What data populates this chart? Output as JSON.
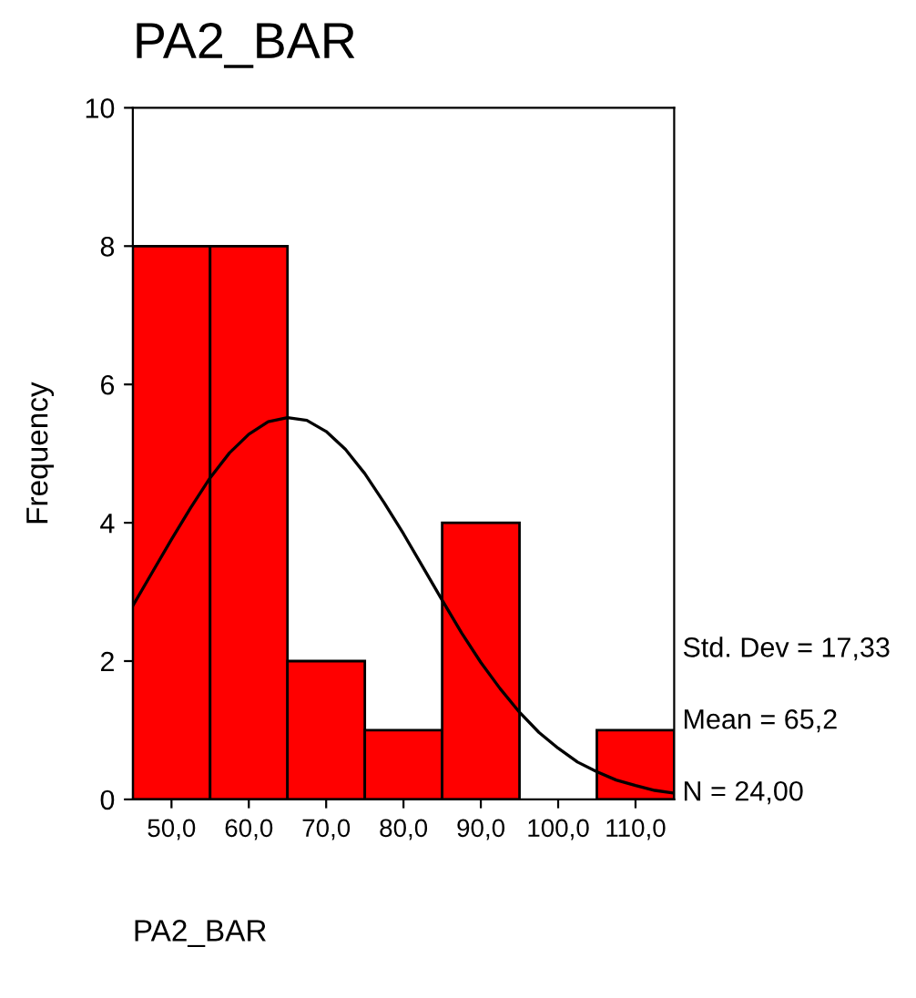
{
  "chart_data": {
    "type": "histogram",
    "title": "PA2_BAR",
    "xlabel": "PA2_BAR",
    "ylabel": "Frequency",
    "bins": [
      45,
      55,
      65,
      75,
      85,
      95,
      105,
      115
    ],
    "values": [
      8,
      8,
      2,
      1,
      4,
      0,
      1
    ],
    "color": "#ff0000",
    "series": [
      {
        "type": "line",
        "color": "#000000",
        "x": [
          45,
          47.5,
          50,
          52.5,
          55,
          57.5,
          60,
          62.5,
          65,
          67.5,
          70,
          72.5,
          75,
          77.5,
          80,
          82.5,
          85,
          87.5,
          90,
          92.5,
          95,
          97.5,
          100,
          102.5,
          105,
          107.5,
          110,
          112.5,
          115
        ],
        "values": [
          2.8,
          3.28,
          3.76,
          4.22,
          4.65,
          5.01,
          5.28,
          5.46,
          5.52,
          5.48,
          5.32,
          5.06,
          4.71,
          4.29,
          3.84,
          3.36,
          2.88,
          2.41,
          1.98,
          1.6,
          1.26,
          0.97,
          0.74,
          0.54,
          0.4,
          0.28,
          0.2,
          0.13,
          0.09
        ]
      }
    ],
    "xlim": [
      45,
      115
    ],
    "ylim": [
      0,
      10
    ],
    "xticks": [
      {
        "value": 50,
        "label": "50,0"
      },
      {
        "value": 60,
        "label": "60,0"
      },
      {
        "value": 70,
        "label": "70,0"
      },
      {
        "value": 80,
        "label": "80,0"
      },
      {
        "value": 90,
        "label": "90,0"
      },
      {
        "value": 100,
        "label": "100,0"
      },
      {
        "value": 110,
        "label": "110,0"
      }
    ],
    "yticks": [
      0,
      2,
      4,
      6,
      8,
      10
    ],
    "annotations": [
      "Std. Dev = 17,33",
      "Mean = 65,2",
      "N = 24,00"
    ],
    "grid": false,
    "legend": false
  }
}
